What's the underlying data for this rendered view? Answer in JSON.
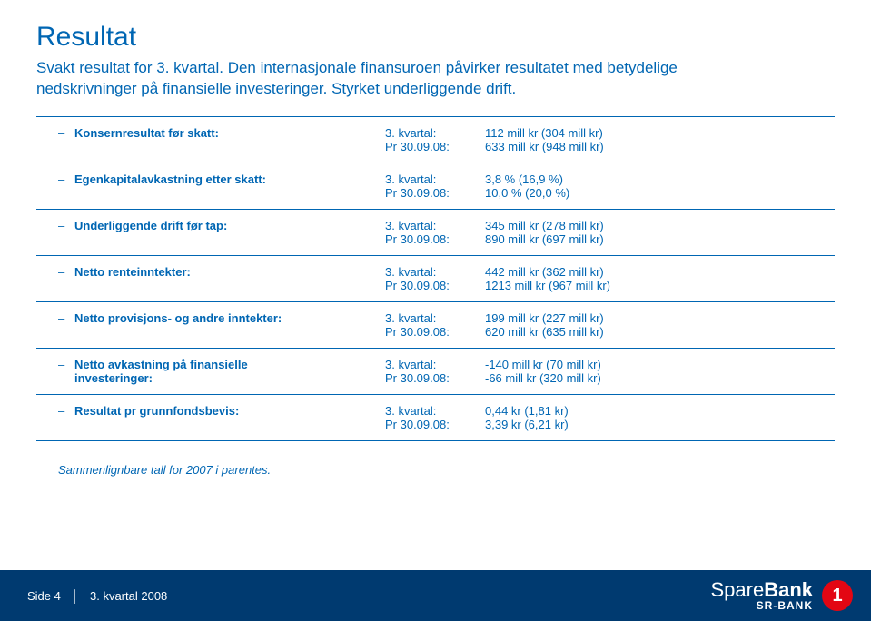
{
  "colors": {
    "brand_blue": "#0066b3",
    "footer_bg": "#003a70",
    "badge_bg": "#e30613",
    "text_white": "#ffffff",
    "rule": "#0066b3"
  },
  "title": "Resultat",
  "subtitle": "Svakt resultat for 3. kvartal. Den internasjonale finansuroen påvirker resultatet med betydelige nedskrivninger på finansielle investeringer. Styrket underliggende drift.",
  "rows": [
    {
      "label": "Konsernresultat før skatt:",
      "p1_left": "3. kvartal:",
      "p1_right": "112 mill kr (304 mill kr)",
      "p2_left": "Pr 30.09.08:",
      "p2_right": "633 mill kr (948 mill kr)"
    },
    {
      "label": "Egenkapitalavkastning etter skatt:",
      "p1_left": "3. kvartal:",
      "p1_right": "3,8 % (16,9 %)",
      "p2_left": "Pr 30.09.08:",
      "p2_right": "10,0 % (20,0 %)"
    },
    {
      "label": "Underliggende drift før tap:",
      "p1_left": "3. kvartal:",
      "p1_right": "345 mill kr (278 mill kr)",
      "p2_left": "Pr 30.09.08:",
      "p2_right": "890 mill kr (697 mill kr)"
    },
    {
      "label": "Netto renteinntekter:",
      "p1_left": "3. kvartal:",
      "p1_right": "442 mill kr (362 mill kr)",
      "p2_left": "Pr 30.09.08:",
      "p2_right": "1213 mill kr (967 mill kr)"
    },
    {
      "label": "Netto provisjons- og andre inntekter:",
      "p1_left": "3. kvartal:",
      "p1_right": "199 mill kr (227 mill kr)",
      "p2_left": "Pr 30.09.08:",
      "p2_right": "620 mill kr (635 mill kr)"
    },
    {
      "label": "Netto avkastning på finansielle",
      "label2": "investeringer:",
      "p1_left": "3. kvartal:",
      "p1_right": "-140 mill kr (70 mill kr)",
      "p2_left": "Pr 30.09.08:",
      "p2_right": "-66 mill kr (320 mill kr)"
    },
    {
      "label": "Resultat pr grunnfondsbevis:",
      "p1_left": "3. kvartal:",
      "p1_right": "0,44 kr (1,81 kr)",
      "p2_left": "Pr 30.09.08:",
      "p2_right": "3,39 kr (6,21 kr)"
    }
  ],
  "note": "Sammenlignbare tall for 2007 i parentes.",
  "footer": {
    "page_label": "Side 4",
    "context": "3. kvartal 2008",
    "brand_light": "Spare",
    "brand_bold": "Bank",
    "brand_sub": "SR-BANK",
    "badge": "1"
  }
}
